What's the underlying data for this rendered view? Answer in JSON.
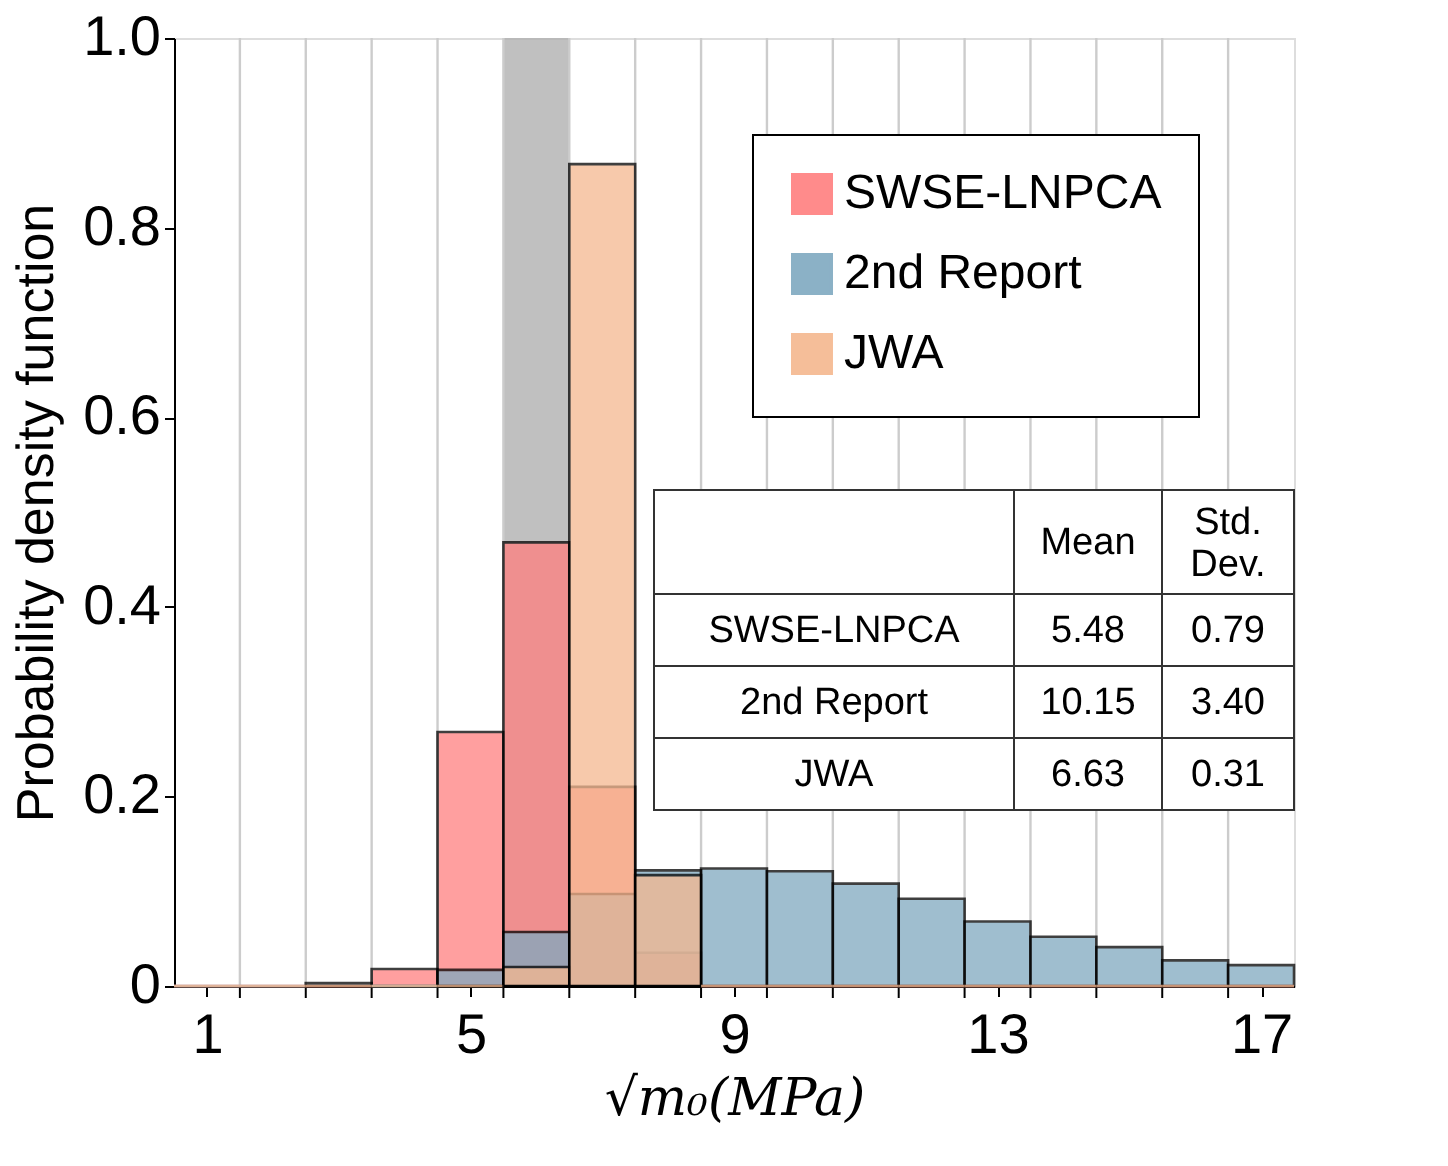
{
  "chart_data": {
    "type": "histogram",
    "xlabel": "√m₀(MPa)",
    "ylabel": "Probability density function",
    "bins": [
      0.5,
      1.5,
      2.5,
      3.5,
      4.5,
      5.5,
      6.5,
      7.5,
      8.5,
      9.5,
      10.5,
      11.5,
      12.5,
      13.5,
      14.5,
      15.5,
      16.5,
      17.5
    ],
    "series": [
      {
        "name": "SWSE-LNPCA",
        "color": "#ff7f7f",
        "values": [
          0,
          0,
          0,
          0.018,
          0.268,
          0.468,
          0.21,
          0.035,
          0,
          0,
          0,
          0,
          0,
          0,
          0,
          0,
          0
        ]
      },
      {
        "name": "2nd Report",
        "color": "#7fa9c0",
        "values": [
          0,
          0,
          0.003,
          0,
          0.017,
          0.057,
          0.097,
          0.122,
          0.124,
          0.121,
          0.108,
          0.092,
          0.068,
          0.052,
          0.041,
          0.027,
          0.022
        ]
      },
      {
        "name": "JWA",
        "color": "#f5b88f",
        "values": [
          0,
          0,
          0,
          0,
          0,
          0.02,
          0.867,
          0.117,
          0,
          0,
          0,
          0,
          0,
          0,
          0,
          0,
          0
        ]
      }
    ],
    "bands": [
      {
        "axis": "x",
        "from": 5.5,
        "to": 6.5,
        "color": "#b0b0b0"
      }
    ],
    "xlim": [
      0.5,
      17.5
    ],
    "xticks": [
      1,
      {
        "value": 1.5,
        "label": null
      },
      {
        "value": 2.5,
        "label": null
      },
      {
        "value": 3.5,
        "label": null
      },
      {
        "value": 4.5,
        "label": null
      },
      5,
      {
        "value": 5.5,
        "label": null
      },
      {
        "value": 6.5,
        "label": null
      },
      {
        "value": 7.5,
        "label": null
      },
      {
        "value": 8.5,
        "label": null
      },
      9,
      {
        "value": 9.5,
        "label": null
      },
      {
        "value": 10.5,
        "label": null
      },
      {
        "value": 11.5,
        "label": null
      },
      {
        "value": 12.5,
        "label": null
      },
      13,
      {
        "value": 13.5,
        "label": null
      },
      {
        "value": 14.5,
        "label": null
      },
      {
        "value": 15.5,
        "label": null
      },
      {
        "value": 16.5,
        "label": null
      },
      17
    ],
    "ylim": [
      0,
      1
    ],
    "yticks": [
      0,
      0.2,
      0.4,
      0.6,
      0.8,
      {
        "value": 1,
        "label": "1.0"
      }
    ],
    "grid": "x",
    "legend": "top right",
    "annotations": [
      "Mean",
      "Std. Dev.",
      "SWSE-LNPCA",
      "5.48",
      "0.79",
      "2nd Report",
      "10.15",
      "3.40",
      "JWA",
      "6.63",
      "0.31"
    ]
  }
}
